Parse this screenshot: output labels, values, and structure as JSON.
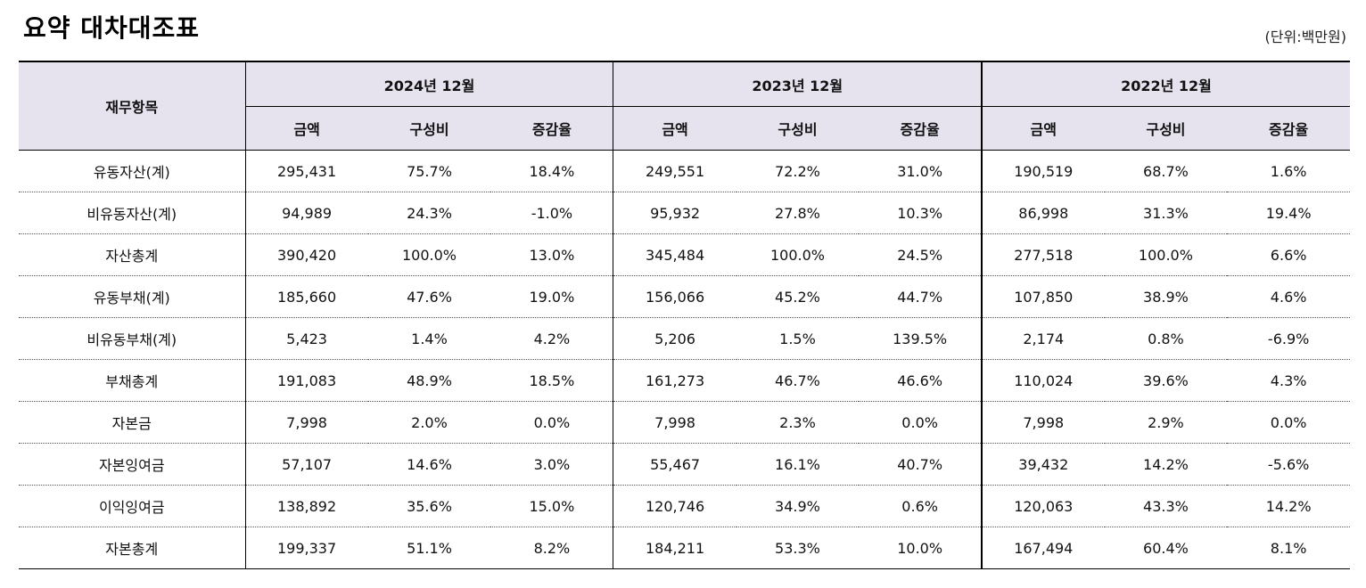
{
  "title": "요약 대차대조표",
  "unit": "(단위:백만원)",
  "header": {
    "item_label": "재무항목",
    "years": [
      "2024년 12월",
      "2023년 12월",
      "2022년 12월"
    ],
    "sub_labels": [
      "금액",
      "구성비",
      "증감율"
    ]
  },
  "rows": [
    {
      "name": "유동자산(계)",
      "cells": [
        "295,431",
        "75.7%",
        "18.4%",
        "249,551",
        "72.2%",
        "31.0%",
        "190,519",
        "68.7%",
        "1.6%"
      ]
    },
    {
      "name": "비유동자산(계)",
      "cells": [
        "94,989",
        "24.3%",
        "-1.0%",
        "95,932",
        "27.8%",
        "10.3%",
        "86,998",
        "31.3%",
        "19.4%"
      ]
    },
    {
      "name": "자산총계",
      "cells": [
        "390,420",
        "100.0%",
        "13.0%",
        "345,484",
        "100.0%",
        "24.5%",
        "277,518",
        "100.0%",
        "6.6%"
      ]
    },
    {
      "name": "유동부채(계)",
      "cells": [
        "185,660",
        "47.6%",
        "19.0%",
        "156,066",
        "45.2%",
        "44.7%",
        "107,850",
        "38.9%",
        "4.6%"
      ]
    },
    {
      "name": "비유동부채(계)",
      "cells": [
        "5,423",
        "1.4%",
        "4.2%",
        "5,206",
        "1.5%",
        "139.5%",
        "2,174",
        "0.8%",
        "-6.9%"
      ]
    },
    {
      "name": "부채총계",
      "cells": [
        "191,083",
        "48.9%",
        "18.5%",
        "161,273",
        "46.7%",
        "46.6%",
        "110,024",
        "39.6%",
        "4.3%"
      ]
    },
    {
      "name": "자본금",
      "cells": [
        "7,998",
        "2.0%",
        "0.0%",
        "7,998",
        "2.3%",
        "0.0%",
        "7,998",
        "2.9%",
        "0.0%"
      ]
    },
    {
      "name": "자본잉여금",
      "cells": [
        "57,107",
        "14.6%",
        "3.0%",
        "55,467",
        "16.1%",
        "40.7%",
        "39,432",
        "14.2%",
        "-5.6%"
      ]
    },
    {
      "name": "이익잉여금",
      "cells": [
        "138,892",
        "35.6%",
        "15.0%",
        "120,746",
        "34.9%",
        "0.6%",
        "120,063",
        "43.3%",
        "14.2%"
      ]
    },
    {
      "name": "자본총계",
      "cells": [
        "199,337",
        "51.1%",
        "8.2%",
        "184,211",
        "53.3%",
        "10.0%",
        "167,494",
        "60.4%",
        "8.1%"
      ]
    }
  ]
}
